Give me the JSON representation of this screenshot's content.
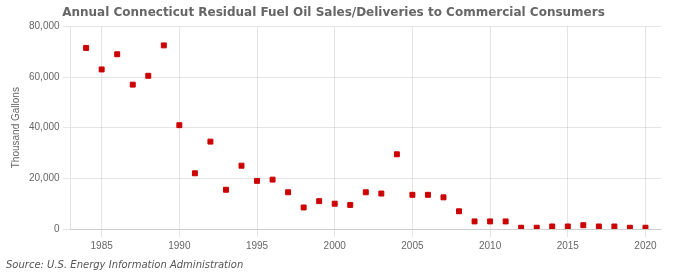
{
  "chart_data": {
    "type": "scatter",
    "title": "Annual Connecticut Residual Fuel Oil Sales/Deliveries to Commercial Consumers",
    "ylabel": "Thousand Gallons",
    "annotations": [
      "Source: U.S. Energy Information Administration"
    ],
    "x": [
      1984,
      1985,
      1986,
      1987,
      1988,
      1989,
      1990,
      1991,
      1992,
      1993,
      1994,
      1995,
      1996,
      1997,
      1998,
      1999,
      2000,
      2001,
      2002,
      2003,
      2004,
      2005,
      2006,
      2007,
      2008,
      2009,
      2010,
      2011,
      2012,
      2013,
      2014,
      2015,
      2016,
      2017,
      2018,
      2019,
      2020
    ],
    "values": [
      71500,
      63000,
      69000,
      57000,
      60500,
      72500,
      41000,
      22000,
      34500,
      15500,
      25000,
      19000,
      19500,
      14500,
      8500,
      11000,
      10000,
      9500,
      14500,
      14000,
      29500,
      13500,
      13500,
      12500,
      7000,
      3000,
      3000,
      3000,
      500,
      500,
      1000,
      1000,
      1500,
      1000,
      1000,
      500,
      500
    ],
    "color": "#cc0000",
    "marker": "square",
    "xlim": [
      1983,
      2021
    ],
    "xticks": [
      1985,
      1990,
      1995,
      2000,
      2005,
      2010,
      2015,
      2020
    ],
    "ylim": [
      0,
      80000
    ],
    "yticks": [
      0,
      {
        "value": 20000,
        "label": "20,000"
      },
      {
        "value": 40000,
        "label": "40,000"
      },
      {
        "value": 60000,
        "label": "60,000"
      },
      {
        "value": 80000,
        "label": "80,000"
      }
    ],
    "grid": true
  }
}
